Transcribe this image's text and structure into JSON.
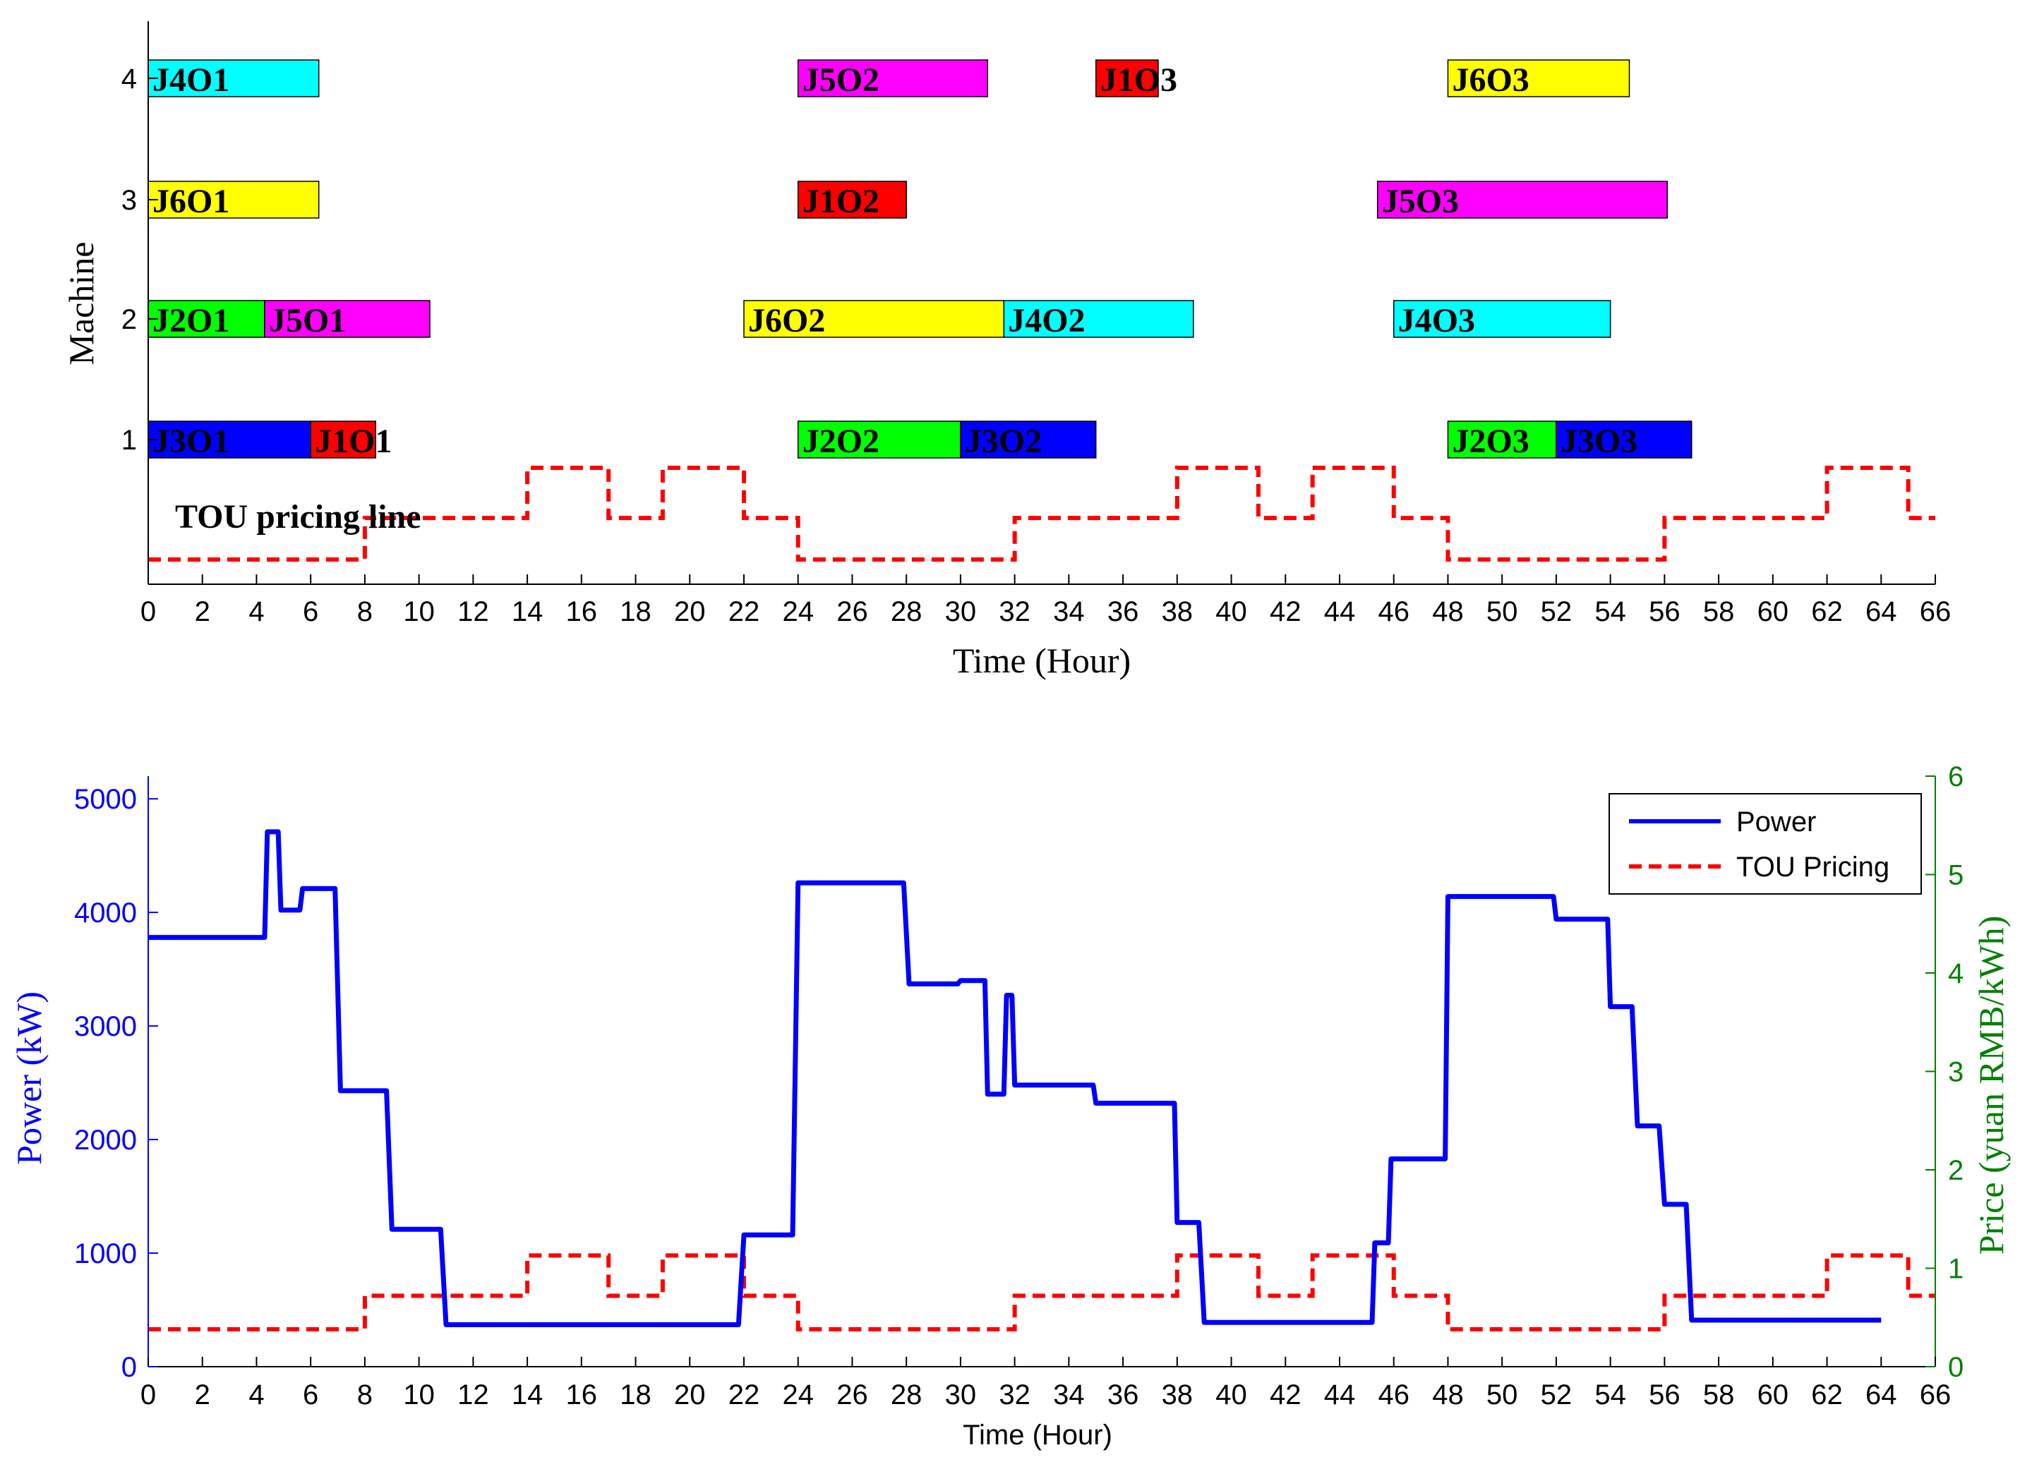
{
  "chart_data": [
    {
      "type": "gantt",
      "xlabel": "Time (Hour)",
      "ylabel": "Machine",
      "xlim": [
        0,
        66
      ],
      "xticks": [
        0,
        2,
        4,
        6,
        8,
        10,
        12,
        14,
        16,
        18,
        20,
        22,
        24,
        26,
        28,
        30,
        32,
        34,
        36,
        38,
        40,
        42,
        44,
        46,
        48,
        50,
        52,
        54,
        56,
        58,
        60,
        62,
        64,
        66
      ],
      "machines": [
        "1",
        "2",
        "3",
        "4"
      ],
      "colors": {
        "J1": "#ff0000",
        "J2": "#00ff00",
        "J3": "#0000ff",
        "J4": "#00ffff",
        "J5": "#ff00ff",
        "J6": "#ffff00",
        "tou": "#ff0000"
      },
      "operations": [
        {
          "label": "J4O1",
          "job": "J4",
          "machine": 4,
          "start": 0,
          "end": 6.3
        },
        {
          "label": "J5O2",
          "job": "J5",
          "machine": 4,
          "start": 24,
          "end": 31
        },
        {
          "label": "J1O3",
          "job": "J1",
          "machine": 4,
          "start": 35,
          "end": 37.3
        },
        {
          "label": "J6O3",
          "job": "J6",
          "machine": 4,
          "start": 48,
          "end": 54.7
        },
        {
          "label": "J6O1",
          "job": "J6",
          "machine": 3,
          "start": 0,
          "end": 6.3
        },
        {
          "label": "J1O2",
          "job": "J1",
          "machine": 3,
          "start": 24,
          "end": 28
        },
        {
          "label": "J5O3",
          "job": "J5",
          "machine": 3,
          "start": 45.4,
          "end": 56.1
        },
        {
          "label": "J2O1",
          "job": "J2",
          "machine": 2,
          "start": 0,
          "end": 4.3
        },
        {
          "label": "J5O1",
          "job": "J5",
          "machine": 2,
          "start": 4.3,
          "end": 10.4
        },
        {
          "label": "J6O2",
          "job": "J6",
          "machine": 2,
          "start": 22,
          "end": 31.6
        },
        {
          "label": "J4O2",
          "job": "J4",
          "machine": 2,
          "start": 31.6,
          "end": 38.6
        },
        {
          "label": "J4O3",
          "job": "J4",
          "machine": 2,
          "start": 46,
          "end": 54
        },
        {
          "label": "J3O1",
          "job": "J3",
          "machine": 1,
          "start": 0,
          "end": 6
        },
        {
          "label": "J1O1",
          "job": "J1",
          "machine": 1,
          "start": 6,
          "end": 8.4
        },
        {
          "label": "J2O2",
          "job": "J2",
          "machine": 1,
          "start": 24,
          "end": 30
        },
        {
          "label": "J3O2",
          "job": "J3",
          "machine": 1,
          "start": 30,
          "end": 35
        },
        {
          "label": "J2O3",
          "job": "J2",
          "machine": 1,
          "start": 48,
          "end": 52
        },
        {
          "label": "J3O3",
          "job": "J3",
          "machine": 1,
          "start": 52,
          "end": 57
        }
      ],
      "tou_annotation": "TOU pricing line"
    },
    {
      "type": "line",
      "xlabel": "Time (Hour)",
      "ylabel": "Power (kW)",
      "y2label": "Price (yuan RMB/kWh)",
      "xlim": [
        0,
        66
      ],
      "ylim": [
        0,
        5200
      ],
      "y2lim": [
        0,
        6
      ],
      "xticks": [
        0,
        2,
        4,
        6,
        8,
        10,
        12,
        14,
        16,
        18,
        20,
        22,
        24,
        26,
        28,
        30,
        32,
        34,
        36,
        38,
        40,
        42,
        44,
        46,
        48,
        50,
        52,
        54,
        56,
        58,
        60,
        62,
        64,
        66
      ],
      "yticks": [
        0,
        1000,
        2000,
        3000,
        4000,
        5000
      ],
      "y2ticks": [
        0,
        1,
        2,
        3,
        4,
        5,
        6
      ],
      "axis_colors": {
        "left": "#0000ff",
        "right": "#008000"
      },
      "legend_position": "top-right",
      "series": [
        {
          "name": "Power",
          "color": "#0000ff",
          "style": "solid",
          "x": [
            0,
            4.3,
            4.4,
            4.8,
            4.9,
            5.6,
            5.7,
            6.9,
            7.1,
            8.8,
            9.0,
            10.8,
            11.0,
            21.8,
            22.0,
            23.8,
            24.0,
            27.9,
            28.1,
            29.9,
            30.0,
            30.9,
            31.0,
            31.6,
            31.7,
            31.9,
            32.0,
            34.9,
            35.0,
            37.9,
            38.0,
            38.8,
            39.0,
            45.2,
            45.3,
            45.8,
            45.9,
            47.9,
            48.0,
            51.9,
            52.0,
            53.9,
            54.0,
            54.8,
            55.0,
            55.8,
            56.0,
            56.8,
            57.0,
            64.0
          ],
          "y": [
            3780,
            3780,
            4710,
            4710,
            4020,
            4020,
            4210,
            4210,
            2430,
            2430,
            1210,
            1210,
            370,
            370,
            1160,
            1160,
            4260,
            4260,
            3370,
            3370,
            3400,
            3400,
            2400,
            2400,
            3270,
            3270,
            2480,
            2480,
            2320,
            2320,
            1270,
            1270,
            390,
            390,
            1090,
            1090,
            1830,
            1830,
            4140,
            4140,
            3940,
            3940,
            3170,
            3170,
            2120,
            2120,
            1430,
            1430,
            410,
            410
          ]
        },
        {
          "name": "TOU Pricing",
          "color": "#ff0000",
          "style": "dashed",
          "axis": "right",
          "x": [
            0,
            8,
            8,
            14,
            14,
            17,
            17,
            19,
            19,
            22,
            22,
            24,
            24,
            32,
            32,
            38,
            38,
            41,
            41,
            43,
            43,
            46,
            46,
            48,
            48,
            56,
            56,
            62,
            62,
            65,
            65,
            66
          ],
          "y": [
            0.38,
            0.38,
            0.72,
            0.72,
            1.13,
            1.13,
            0.72,
            0.72,
            1.13,
            1.13,
            0.72,
            0.72,
            0.38,
            0.38,
            0.72,
            0.72,
            1.13,
            1.13,
            0.72,
            0.72,
            1.13,
            1.13,
            0.72,
            0.72,
            0.38,
            0.38,
            0.72,
            0.72,
            1.13,
            1.13,
            0.72,
            0.72
          ]
        }
      ]
    }
  ]
}
